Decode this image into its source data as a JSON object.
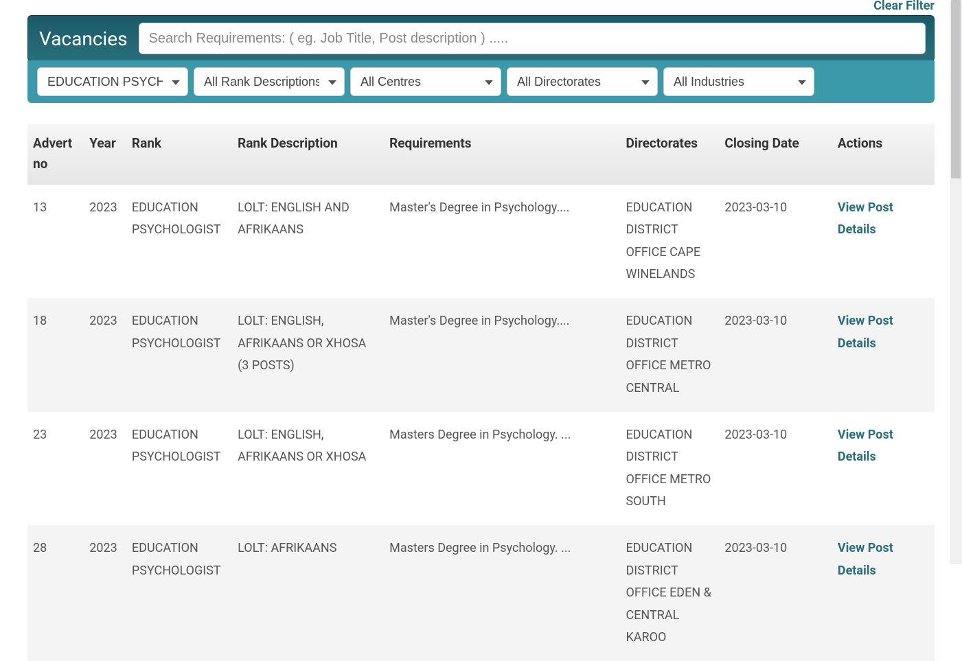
{
  "top": {
    "clear_filter": "Clear Filter"
  },
  "header": {
    "title": "Vacancies",
    "search_placeholder": "Search Requirements: ( eg. Job Title, Post description ) ....."
  },
  "filters": {
    "rank": "EDUCATION PSYCHO",
    "rank_desc": "All Rank Descriptions",
    "centres": "All Centres",
    "directorates": "All Directorates",
    "industries": "All Industries"
  },
  "table": {
    "columns": {
      "advert_no": "Advert no",
      "year": "Year",
      "rank": "Rank",
      "rank_desc": "Rank Description",
      "requirements": "Requirements",
      "directorates": "Directorates",
      "closing_date": "Closing Date",
      "actions": "Actions"
    },
    "action_label": "View Post Details",
    "rows": [
      {
        "advert_no": "13",
        "year": "2023",
        "rank": "EDUCATION PSYCHOLOGIST",
        "rank_desc": "LOLT: ENGLISH AND AFRIKAANS",
        "requirements": "Master's Degree in Psychology....",
        "directorates": "EDUCATION DISTRICT OFFICE CAPE WINELANDS",
        "closing_date": "2023-03-10"
      },
      {
        "advert_no": "18",
        "year": "2023",
        "rank": "EDUCATION PSYCHOLOGIST",
        "rank_desc": "LOLT: ENGLISH, AFRIKAANS OR XHOSA (3 POSTS)",
        "requirements": "Master's Degree in Psychology....",
        "directorates": "EDUCATION DISTRICT OFFICE METRO CENTRAL",
        "closing_date": "2023-03-10"
      },
      {
        "advert_no": "23",
        "year": "2023",
        "rank": "EDUCATION PSYCHOLOGIST",
        "rank_desc": "LOLT: ENGLISH, AFRIKAANS OR XHOSA",
        "requirements": "Masters Degree in Psychology. ...",
        "directorates": "EDUCATION DISTRICT OFFICE METRO SOUTH",
        "closing_date": "2023-03-10"
      },
      {
        "advert_no": "28",
        "year": "2023",
        "rank": "EDUCATION PSYCHOLOGIST",
        "rank_desc": "LOLT: AFRIKAANS",
        "requirements": "Masters Degree in Psychology. ...",
        "directorates": "EDUCATION DISTRICT OFFICE EDEN & CENTRAL KAROO",
        "closing_date": "2023-03-10"
      }
    ]
  }
}
